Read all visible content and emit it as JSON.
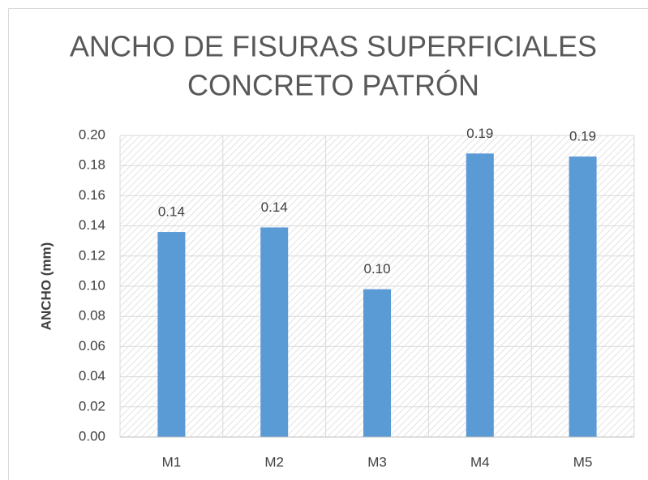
{
  "chart_data": {
    "type": "bar",
    "title": [
      "ANCHO DE FISURAS SUPERFICIALES",
      "CONCRETO PATRÓN"
    ],
    "y_label": "ANCHO (mm)",
    "categories": [
      "M1",
      "M2",
      "M3",
      "M4",
      "M5"
    ],
    "values": [
      0.136,
      0.139,
      0.098,
      0.188,
      0.186
    ],
    "value_labels": [
      "0.14",
      "0.14",
      "0.10",
      "0.19",
      "0.19"
    ],
    "color": "#5b9bd5",
    "ylim": [
      0,
      0.2
    ],
    "yticks": [
      {
        "value": 0,
        "label": "0.00"
      },
      {
        "value": 0.02,
        "label": "0.02"
      },
      {
        "value": 0.04,
        "label": "0.04"
      },
      {
        "value": 0.06,
        "label": "0.06"
      },
      {
        "value": 0.08,
        "label": "0.08"
      },
      {
        "value": 0.1,
        "label": "0.10"
      },
      {
        "value": 0.12,
        "label": "0.12"
      },
      {
        "value": 0.14,
        "label": "0.14"
      },
      {
        "value": 0.16,
        "label": "0.16"
      },
      {
        "value": 0.18,
        "label": "0.18"
      },
      {
        "value": 0.2,
        "label": "0.20"
      }
    ],
    "grid": true
  }
}
